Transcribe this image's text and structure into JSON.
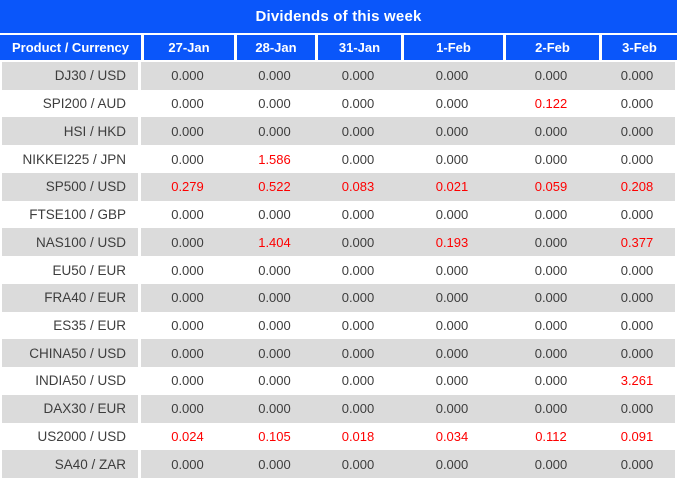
{
  "title": "Dividends of this week",
  "colors": {
    "header_bg": "#0a56fa",
    "header_text": "#ffffff",
    "row_even_bg": "#dbdbdb",
    "row_odd_bg": "#ffffff",
    "value_text": "#3d3d3d",
    "dividend_highlight": "#fe0000",
    "separator": "#ffffff"
  },
  "table": {
    "product_header": "Product / Currency",
    "date_headers": [
      "27-Jan",
      "28-Jan",
      "31-Jan",
      "1-Feb",
      "2-Feb",
      "3-Feb"
    ],
    "rows": [
      {
        "product": "DJ30 / USD",
        "values": [
          "0.000",
          "0.000",
          "0.000",
          "0.000",
          "0.000",
          "0.000"
        ],
        "highlights": [
          false,
          false,
          false,
          false,
          false,
          false
        ]
      },
      {
        "product": "SPI200 / AUD",
        "values": [
          "0.000",
          "0.000",
          "0.000",
          "0.000",
          "0.122",
          "0.000"
        ],
        "highlights": [
          false,
          false,
          false,
          false,
          true,
          false
        ]
      },
      {
        "product": "HSI / HKD",
        "values": [
          "0.000",
          "0.000",
          "0.000",
          "0.000",
          "0.000",
          "0.000"
        ],
        "highlights": [
          false,
          false,
          false,
          false,
          false,
          false
        ]
      },
      {
        "product": "NIKKEI225 / JPN",
        "values": [
          "0.000",
          "1.586",
          "0.000",
          "0.000",
          "0.000",
          "0.000"
        ],
        "highlights": [
          false,
          true,
          false,
          false,
          false,
          false
        ]
      },
      {
        "product": "SP500 / USD",
        "values": [
          "0.279",
          "0.522",
          "0.083",
          "0.021",
          "0.059",
          "0.208"
        ],
        "highlights": [
          true,
          true,
          true,
          true,
          true,
          true
        ]
      },
      {
        "product": "FTSE100 / GBP",
        "values": [
          "0.000",
          "0.000",
          "0.000",
          "0.000",
          "0.000",
          "0.000"
        ],
        "highlights": [
          false,
          false,
          false,
          false,
          false,
          false
        ]
      },
      {
        "product": "NAS100 / USD",
        "values": [
          "0.000",
          "1.404",
          "0.000",
          "0.193",
          "0.000",
          "0.377"
        ],
        "highlights": [
          false,
          true,
          false,
          true,
          false,
          true
        ]
      },
      {
        "product": "EU50 / EUR",
        "values": [
          "0.000",
          "0.000",
          "0.000",
          "0.000",
          "0.000",
          "0.000"
        ],
        "highlights": [
          false,
          false,
          false,
          false,
          false,
          false
        ]
      },
      {
        "product": "FRA40 / EUR",
        "values": [
          "0.000",
          "0.000",
          "0.000",
          "0.000",
          "0.000",
          "0.000"
        ],
        "highlights": [
          false,
          false,
          false,
          false,
          false,
          false
        ]
      },
      {
        "product": "ES35 / EUR",
        "values": [
          "0.000",
          "0.000",
          "0.000",
          "0.000",
          "0.000",
          "0.000"
        ],
        "highlights": [
          false,
          false,
          false,
          false,
          false,
          false
        ]
      },
      {
        "product": "CHINA50 / USD",
        "values": [
          "0.000",
          "0.000",
          "0.000",
          "0.000",
          "0.000",
          "0.000"
        ],
        "highlights": [
          false,
          false,
          false,
          false,
          false,
          false
        ]
      },
      {
        "product": "INDIA50 / USD",
        "values": [
          "0.000",
          "0.000",
          "0.000",
          "0.000",
          "0.000",
          "3.261"
        ],
        "highlights": [
          false,
          false,
          false,
          false,
          false,
          true
        ]
      },
      {
        "product": "DAX30 / EUR",
        "values": [
          "0.000",
          "0.000",
          "0.000",
          "0.000",
          "0.000",
          "0.000"
        ],
        "highlights": [
          false,
          false,
          false,
          false,
          false,
          false
        ]
      },
      {
        "product": "US2000 / USD",
        "values": [
          "0.024",
          "0.105",
          "0.018",
          "0.034",
          "0.112",
          "0.091"
        ],
        "highlights": [
          true,
          true,
          true,
          true,
          true,
          true
        ]
      },
      {
        "product": "SA40 / ZAR",
        "values": [
          "0.000",
          "0.000",
          "0.000",
          "0.000",
          "0.000",
          "0.000"
        ],
        "highlights": [
          false,
          false,
          false,
          false,
          false,
          false
        ]
      }
    ]
  }
}
